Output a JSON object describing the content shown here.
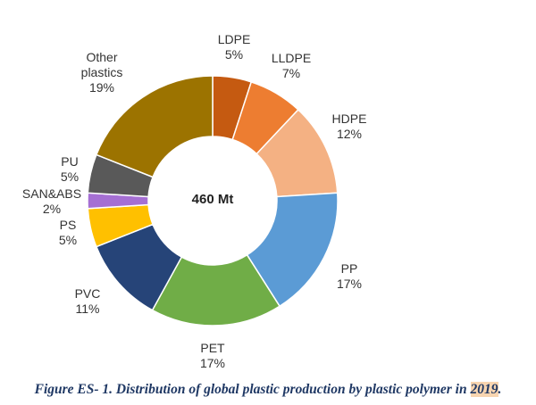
{
  "chart_data": {
    "type": "pie",
    "variant": "donut",
    "center_label": "460 Mt",
    "slices": [
      {
        "label": "LDPE",
        "value": 5,
        "value_label": "5%",
        "color": "#c55a11"
      },
      {
        "label": "LLDPE",
        "value": 7,
        "value_label": "7%",
        "color": "#ed7d31"
      },
      {
        "label": "HDPE",
        "value": 12,
        "value_label": "12%",
        "color": "#f4b183"
      },
      {
        "label": "PP",
        "value": 17,
        "value_label": "17%",
        "color": "#5b9bd5"
      },
      {
        "label": "PET",
        "value": 17,
        "value_label": "17%",
        "color": "#70ad47"
      },
      {
        "label": "PVC",
        "value": 11,
        "value_label": "11%",
        "color": "#264478"
      },
      {
        "label": "PS",
        "value": 5,
        "value_label": "5%",
        "color": "#ffc000"
      },
      {
        "label": "SAN&ABS",
        "value": 2,
        "value_label": "2%",
        "color": "#a56fd3"
      },
      {
        "label": "PU",
        "value": 5,
        "value_label": "5%",
        "color": "#595959"
      },
      {
        "label": "Other plastics",
        "value": 19,
        "value_label": "19%",
        "color": "#9c7300"
      }
    ]
  },
  "caption": {
    "text": "Figure ES- 1. Distribution of global plastic production by plastic polymer in ",
    "year": "2019",
    "end": "."
  }
}
